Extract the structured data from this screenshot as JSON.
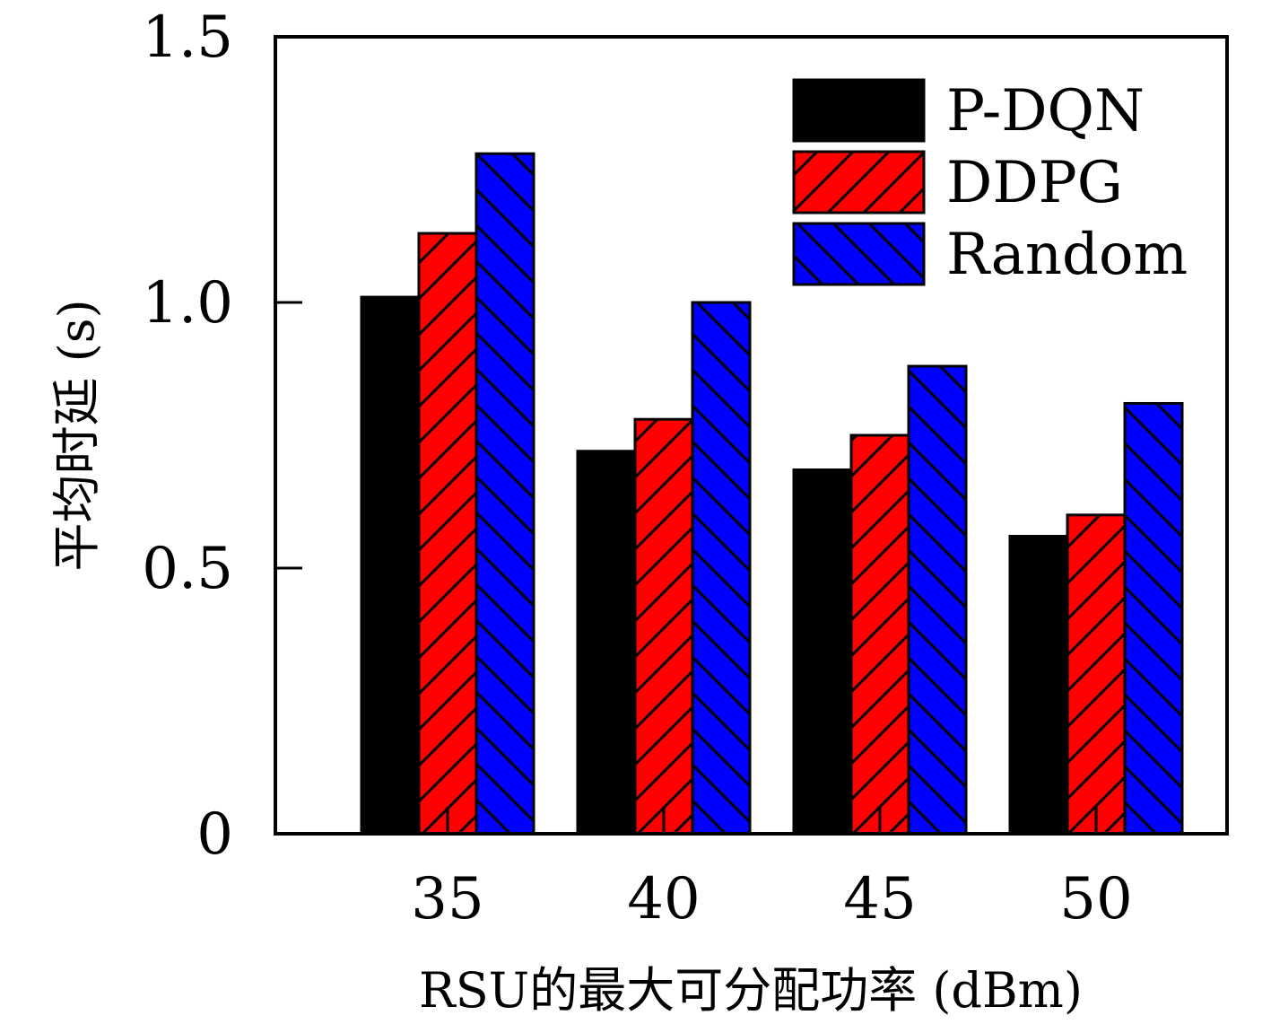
{
  "chart_data": {
    "type": "bar",
    "categories": [
      "35",
      "40",
      "45",
      "50"
    ],
    "series": [
      {
        "name": "P-DQN",
        "values": [
          1.01,
          0.72,
          0.685,
          0.56
        ],
        "color": "#000000",
        "pattern": "solid"
      },
      {
        "name": "DDPG",
        "values": [
          1.13,
          0.78,
          0.75,
          0.6
        ],
        "color": "#ff0000",
        "pattern": "diagonal-up"
      },
      {
        "name": "Random",
        "values": [
          1.28,
          1.0,
          0.88,
          0.81
        ],
        "color": "#0000ff",
        "pattern": "diagonal-down"
      }
    ],
    "xlabel": "RSU的最大可分配功率 (dBm)",
    "ylabel": "平均时延 (s)",
    "ylim": [
      0,
      1.5
    ],
    "yticks": [
      0,
      0.5,
      1.0,
      1.5
    ],
    "ytick_labels": [
      "0",
      "0.5",
      "1.0",
      "1.5"
    ],
    "grid": false,
    "legend_position": "top-right"
  }
}
